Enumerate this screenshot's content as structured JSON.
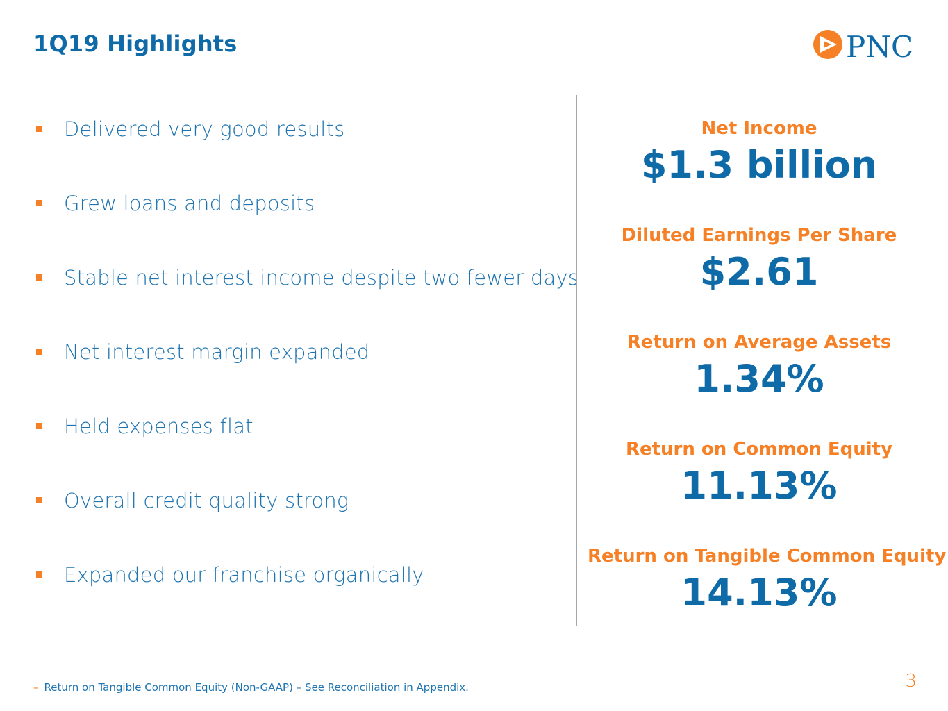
{
  "slide": {
    "title": "1Q19 Highlights",
    "page_number": "3"
  },
  "logo": {
    "text": "PNC",
    "icon": "pnc-triangle-logo-icon"
  },
  "bullets": [
    {
      "text": "Delivered very good results"
    },
    {
      "text": "Grew loans and deposits"
    },
    {
      "text": "Stable net interest income despite two fewer days"
    },
    {
      "text": "Net interest margin expanded"
    },
    {
      "text": "Held expenses flat"
    },
    {
      "text": "Overall credit quality strong"
    },
    {
      "text": "Expanded our franchise organically"
    }
  ],
  "metrics": [
    {
      "label": "Net Income",
      "value": "$1.3 billion"
    },
    {
      "label": "Diluted Earnings Per Share",
      "value": "$2.61"
    },
    {
      "label": "Return on Average Assets",
      "value": "1.34%"
    },
    {
      "label": "Return on Common Equity",
      "value": "11.13%"
    },
    {
      "label": "Return on Tangible Common Equity",
      "value": "14.13%"
    }
  ],
  "footnote": {
    "marker": "–",
    "text": "Return on Tangible Common Equity (Non-GAAP) – See Reconciliation in Appendix."
  },
  "colors": {
    "brand_blue": "#0f6aa8",
    "brand_orange": "#f58025",
    "divider_gray": "#a6a6a6"
  }
}
